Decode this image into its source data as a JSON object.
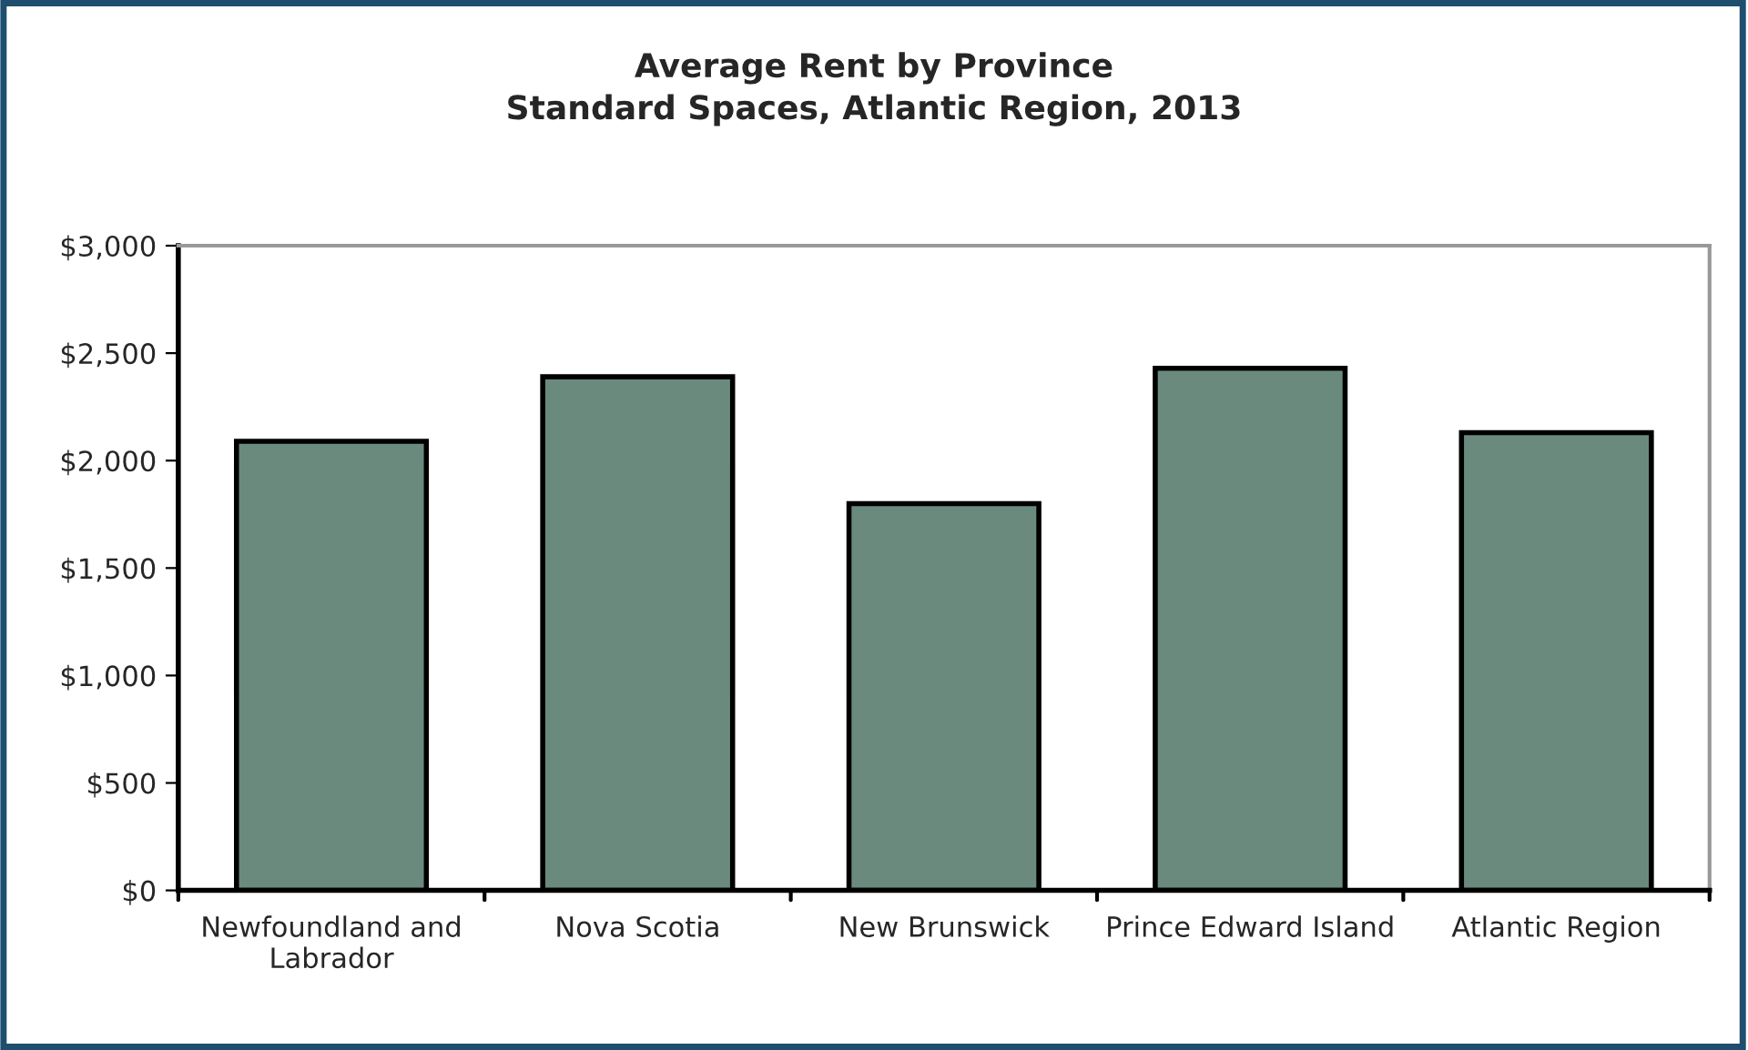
{
  "chart_data": {
    "type": "bar",
    "title": "Average Rent by Province\nStandard Spaces, Atlantic Region, 2013",
    "categories": [
      "Newfoundland and\nLabrador",
      "Nova Scotia",
      "New Brunswick",
      "Prince Edward Island",
      "Atlantic Region"
    ],
    "values": [
      2090,
      2390,
      1800,
      2430,
      2130
    ],
    "color": "#6b8a7e",
    "ylim": [
      0,
      3000
    ],
    "yticks": [
      {
        "value": 0,
        "label": "$0"
      },
      {
        "value": 500,
        "label": "$500"
      },
      {
        "value": 1000,
        "label": "$1,000"
      },
      {
        "value": 1500,
        "label": "$1,500"
      },
      {
        "value": 2000,
        "label": "$2,000"
      },
      {
        "value": 2500,
        "label": "$2,500"
      },
      {
        "value": 3000,
        "label": "$3,000"
      }
    ],
    "grid": false,
    "legend": false
  }
}
